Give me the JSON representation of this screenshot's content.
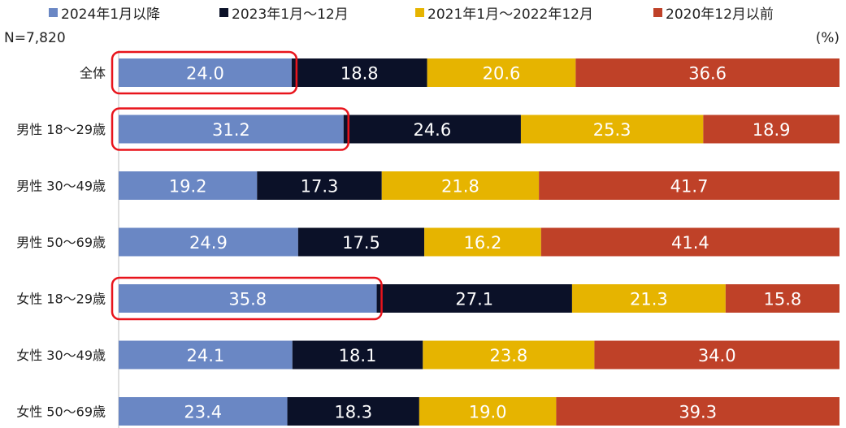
{
  "chart_data": {
    "type": "bar",
    "orientation": "horizontal",
    "stacked": true,
    "sample_size": "N=7,820",
    "unit": "(%)",
    "categories": [
      "全体",
      "男性 18～29歳",
      "男性 30～49歳",
      "男性 50～69歳",
      "女性 18～29歳",
      "女性 30～49歳",
      "女性 50～69歳"
    ],
    "series": [
      {
        "name": "2024年1月以降",
        "color": "#6a87c4",
        "label_color": "#ffffff",
        "values": [
          24.0,
          31.2,
          19.2,
          24.9,
          35.8,
          24.1,
          23.4
        ]
      },
      {
        "name": "2023年1月～12月",
        "color": "#0b1128",
        "label_color": "#ffffff",
        "values": [
          18.8,
          24.6,
          17.3,
          17.5,
          27.1,
          18.1,
          18.3
        ]
      },
      {
        "name": "2021年1月～2022年12月",
        "color": "#e6b400",
        "label_color": "#ffffff",
        "values": [
          20.6,
          25.3,
          21.8,
          16.2,
          21.3,
          23.8,
          19.0
        ]
      },
      {
        "name": "2020年12月以前",
        "color": "#bf4128",
        "label_color": "#ffffff",
        "values": [
          36.6,
          18.9,
          41.7,
          41.4,
          15.8,
          34.0,
          39.3
        ]
      }
    ],
    "highlighted": [
      {
        "category": "全体",
        "series": "2024年1月以降"
      },
      {
        "category": "男性 18～29歳",
        "series": "2024年1月以降"
      },
      {
        "category": "女性 18～29歳",
        "series": "2024年1月以降"
      }
    ],
    "highlight_color": "#e8141c",
    "legend_position": "top",
    "xlim": [
      0,
      100
    ],
    "grid": false
  }
}
